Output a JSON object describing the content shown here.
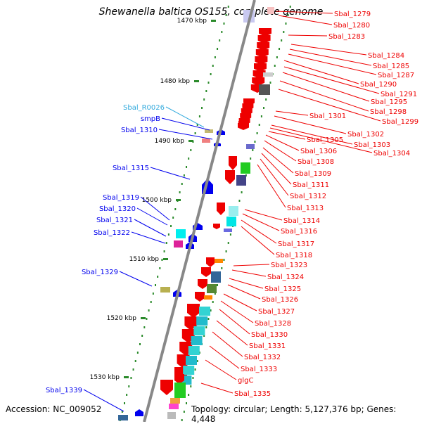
{
  "title": "Shewanella baltica OS155, complete genome",
  "footer": {
    "accession": "Accession: NC_009052",
    "topology": "Topology: circular; Length: 5,127,376 bp; Genes: 4,448"
  },
  "colors": {
    "backbone": "#888888",
    "plus_strand": "#0000ee",
    "minus_strand": "#ee0000",
    "rna": "#33aadd",
    "tick": "#2a8a2a"
  },
  "scale_labels": [
    "1470 kbp",
    "1480 kbp",
    "1490 kbp",
    "1500 kbp",
    "1510 kbp",
    "1520 kbp",
    "1530 kbp"
  ],
  "left_genes": [
    "Sbal_R0026",
    "smpB",
    "Sbal_1310",
    "Sbal_1315",
    "Sbal_1319",
    "Sbal_1320",
    "Sbal_1321",
    "Sbal_1322",
    "Sbal_1329",
    "Sbal_1339"
  ],
  "right_genes": [
    "Sbal_1279",
    "Sbal_1280",
    "Sbal_1283",
    "Sbal_1284",
    "Sbal_1285",
    "Sbal_1287",
    "Sbal_1290",
    "Sbal_1291",
    "Sbal_1295",
    "Sbal_1298",
    "Sbal_1299",
    "Sbal_1301",
    "Sbal_1302",
    "Sbal_1303",
    "Sbal_1304",
    "Sbal_1305",
    "Sbal_1306",
    "Sbal_1308",
    "Sbal_1309",
    "Sbal_1311",
    "Sbal_1312",
    "Sbal_1313",
    "Sbal_1314",
    "Sbal_1316",
    "Sbal_1317",
    "Sbal_1318",
    "Sbal_1323",
    "Sbal_1324",
    "Sbal_1325",
    "Sbal_1326",
    "Sbal_1327",
    "Sbal_1328",
    "Sbal_1330",
    "Sbal_1331",
    "Sbal_1332",
    "Sbal_1333",
    "glgC",
    "Sbal_1335"
  ]
}
